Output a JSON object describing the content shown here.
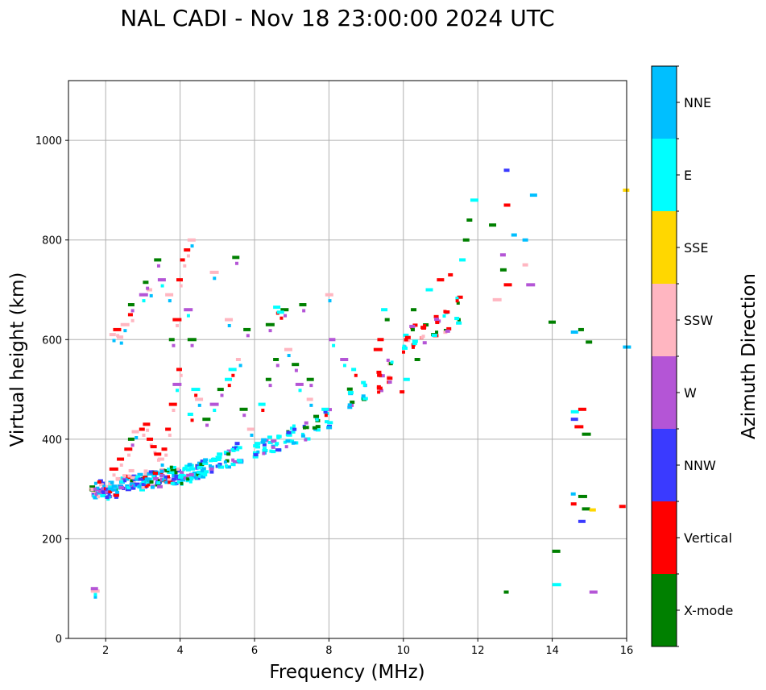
{
  "chart_data": {
    "type": "scatter",
    "title": "NAL CADI - Nov 18 23:00:00 2024 UTC",
    "xlabel": "Frequency (MHz)",
    "ylabel": "Virtual height (km)",
    "xlim": [
      1,
      16
    ],
    "ylim": [
      0,
      1120
    ],
    "xticks": [
      2,
      4,
      6,
      8,
      10,
      12,
      14,
      16
    ],
    "yticks": [
      0,
      200,
      400,
      600,
      800,
      1000
    ],
    "grid": true,
    "colorbar": {
      "title": "Azimuth Direction",
      "categories": [
        {
          "name": "X-mode",
          "color": "#008000"
        },
        {
          "name": "Vertical",
          "color": "#ff0000"
        },
        {
          "name": "NNW",
          "color": "#3a3aff"
        },
        {
          "name": "W",
          "color": "#b455d6"
        },
        {
          "name": "SSW",
          "color": "#ffb6c1"
        },
        {
          "name": "SSE",
          "color": "#ffd700"
        },
        {
          "name": "E",
          "color": "#00ffff"
        },
        {
          "name": "NNE",
          "color": "#00bfff"
        }
      ]
    },
    "trace": [
      [
        1.6,
        290
      ],
      [
        1.6,
        300
      ],
      [
        1.7,
        285
      ],
      [
        1.7,
        305
      ],
      [
        1.8,
        295
      ],
      [
        1.8,
        310
      ],
      [
        1.9,
        290
      ],
      [
        1.9,
        300
      ],
      [
        2.0,
        285
      ],
      [
        2.0,
        300
      ],
      [
        2.1,
        295
      ],
      [
        2.1,
        310
      ],
      [
        2.2,
        290
      ],
      [
        2.2,
        300
      ],
      [
        2.3,
        300
      ],
      [
        2.3,
        315
      ],
      [
        2.4,
        305
      ],
      [
        2.4,
        320
      ],
      [
        2.5,
        300
      ],
      [
        2.5,
        320
      ],
      [
        2.6,
        310
      ],
      [
        2.6,
        330
      ],
      [
        2.7,
        305
      ],
      [
        2.7,
        320
      ],
      [
        2.8,
        310
      ],
      [
        2.8,
        325
      ],
      [
        2.9,
        305
      ],
      [
        2.9,
        320
      ],
      [
        3.0,
        310
      ],
      [
        3.0,
        330
      ],
      [
        3.1,
        315
      ],
      [
        3.1,
        325
      ],
      [
        3.2,
        310
      ],
      [
        3.2,
        330
      ],
      [
        3.3,
        315
      ],
      [
        3.3,
        335
      ],
      [
        3.4,
        310
      ],
      [
        3.4,
        325
      ],
      [
        3.5,
        320
      ],
      [
        3.5,
        335
      ],
      [
        3.6,
        315
      ],
      [
        3.6,
        330
      ],
      [
        3.7,
        320
      ],
      [
        3.7,
        340
      ],
      [
        3.8,
        315
      ],
      [
        3.8,
        330
      ],
      [
        3.9,
        320
      ],
      [
        3.9,
        335
      ],
      [
        4.0,
        315
      ],
      [
        4.0,
        330
      ],
      [
        4.1,
        320
      ],
      [
        4.1,
        340
      ],
      [
        4.2,
        325
      ],
      [
        4.2,
        345
      ],
      [
        4.3,
        320
      ],
      [
        4.3,
        335
      ],
      [
        4.4,
        325
      ],
      [
        4.4,
        345
      ],
      [
        4.5,
        330
      ],
      [
        4.5,
        350
      ],
      [
        4.6,
        335
      ],
      [
        4.6,
        355
      ],
      [
        4.8,
        340
      ],
      [
        4.8,
        360
      ],
      [
        5.0,
        345
      ],
      [
        5.0,
        365
      ],
      [
        5.2,
        350
      ],
      [
        5.2,
        370
      ],
      [
        5.4,
        355
      ],
      [
        5.4,
        380
      ],
      [
        5.5,
        360
      ],
      [
        5.5,
        385
      ],
      [
        6.0,
        370
      ],
      [
        6.0,
        390
      ],
      [
        6.2,
        375
      ],
      [
        6.2,
        395
      ],
      [
        6.4,
        380
      ],
      [
        6.4,
        400
      ],
      [
        6.6,
        385
      ],
      [
        6.6,
        405
      ],
      [
        6.8,
        390
      ],
      [
        6.8,
        410
      ],
      [
        7.0,
        395
      ],
      [
        7.0,
        420
      ],
      [
        7.3,
        405
      ],
      [
        7.3,
        430
      ],
      [
        7.6,
        420
      ],
      [
        7.6,
        440
      ],
      [
        7.9,
        430
      ],
      [
        7.9,
        455
      ],
      [
        8.5,
        470
      ],
      [
        8.5,
        495
      ],
      [
        8.9,
        485
      ],
      [
        8.9,
        510
      ],
      [
        9.3,
        500
      ],
      [
        9.3,
        530
      ],
      [
        9.6,
        520
      ],
      [
        9.6,
        555
      ],
      [
        10.0,
        580
      ],
      [
        10.0,
        605
      ],
      [
        10.2,
        590
      ],
      [
        10.2,
        625
      ],
      [
        10.5,
        600
      ],
      [
        10.5,
        630
      ],
      [
        10.8,
        610
      ],
      [
        10.8,
        640
      ],
      [
        11.1,
        620
      ],
      [
        11.1,
        650
      ],
      [
        11.4,
        640
      ],
      [
        11.4,
        680
      ]
    ],
    "spread": [
      [
        2.1,
        340
      ],
      [
        2.3,
        360
      ],
      [
        2.5,
        380
      ],
      [
        2.6,
        400
      ],
      [
        2.7,
        415
      ],
      [
        2.9,
        420
      ],
      [
        3.0,
        430
      ],
      [
        3.1,
        400
      ],
      [
        3.2,
        385
      ],
      [
        3.3,
        370
      ],
      [
        3.4,
        360
      ],
      [
        3.5,
        380
      ],
      [
        3.6,
        420
      ],
      [
        3.7,
        470
      ],
      [
        3.8,
        510
      ],
      [
        3.9,
        540
      ],
      [
        3.7,
        600
      ],
      [
        3.8,
        640
      ],
      [
        3.6,
        690
      ],
      [
        3.4,
        720
      ],
      [
        3.1,
        700
      ],
      [
        2.9,
        690
      ],
      [
        2.6,
        650
      ],
      [
        2.4,
        630
      ],
      [
        2.1,
        610
      ],
      [
        4.2,
        450
      ],
      [
        4.3,
        500
      ],
      [
        4.4,
        480
      ],
      [
        4.6,
        440
      ],
      [
        4.8,
        470
      ],
      [
        5.0,
        500
      ],
      [
        5.2,
        520
      ],
      [
        5.3,
        540
      ],
      [
        5.5,
        560
      ],
      [
        5.6,
        460
      ],
      [
        5.8,
        420
      ],
      [
        6.1,
        470
      ],
      [
        6.3,
        520
      ],
      [
        6.5,
        560
      ],
      [
        6.8,
        580
      ],
      [
        7.1,
        510
      ],
      [
        7.4,
        480
      ],
      [
        7.8,
        460
      ],
      [
        4.1,
        780
      ],
      [
        4.2,
        800
      ],
      [
        4.0,
        760
      ],
      [
        3.9,
        720
      ],
      [
        4.1,
        660
      ],
      [
        4.2,
        600
      ],
      [
        5.2,
        640
      ],
      [
        5.7,
        620
      ],
      [
        6.3,
        630
      ],
      [
        6.7,
        660
      ],
      [
        7.2,
        670
      ],
      [
        7.9,
        690
      ],
      [
        8.3,
        560
      ],
      [
        8.6,
        540
      ],
      [
        9.2,
        580
      ],
      [
        9.3,
        600
      ],
      [
        9.5,
        640
      ],
      [
        10.0,
        520
      ],
      [
        10.3,
        560
      ],
      [
        10.6,
        700
      ],
      [
        10.9,
        720
      ],
      [
        11.2,
        730
      ],
      [
        11.5,
        760
      ],
      [
        11.6,
        800
      ],
      [
        11.7,
        840
      ],
      [
        11.8,
        880
      ],
      [
        12.3,
        830
      ],
      [
        12.6,
        770
      ],
      [
        12.6,
        740
      ],
      [
        12.7,
        710
      ],
      [
        12.9,
        810
      ],
      [
        13.2,
        800
      ],
      [
        13.2,
        750
      ],
      [
        13.3,
        710
      ],
      [
        13.4,
        890
      ],
      [
        12.7,
        940
      ],
      [
        12.7,
        870
      ],
      [
        12.4,
        680
      ],
      [
        13.9,
        635
      ],
      [
        14.5,
        615
      ],
      [
        14.7,
        620
      ],
      [
        14.9,
        595
      ],
      [
        14.5,
        455
      ],
      [
        14.7,
        460
      ],
      [
        14.5,
        440
      ],
      [
        14.6,
        425
      ],
      [
        14.8,
        410
      ],
      [
        14.5,
        290
      ],
      [
        14.7,
        285
      ],
      [
        14.5,
        270
      ],
      [
        14.8,
        260
      ],
      [
        15.0,
        258
      ],
      [
        14.7,
        235
      ],
      [
        15.8,
        265
      ],
      [
        15.9,
        900
      ],
      [
        15.9,
        585
      ],
      [
        14.0,
        175
      ],
      [
        14.0,
        108
      ],
      [
        12.7,
        93
      ],
      [
        15.0,
        93
      ],
      [
        1.6,
        95
      ],
      [
        1.6,
        100
      ],
      [
        2.2,
        620
      ],
      [
        2.3,
        605
      ],
      [
        2.6,
        670
      ],
      [
        3.3,
        760
      ],
      [
        3.0,
        715
      ],
      [
        4.8,
        735
      ],
      [
        5.4,
        765
      ],
      [
        6.5,
        665
      ],
      [
        6.6,
        655
      ],
      [
        7.0,
        550
      ],
      [
        7.4,
        520
      ],
      [
        8.0,
        600
      ],
      [
        9.4,
        660
      ],
      [
        9.9,
        495
      ],
      [
        10.2,
        660
      ]
    ]
  }
}
